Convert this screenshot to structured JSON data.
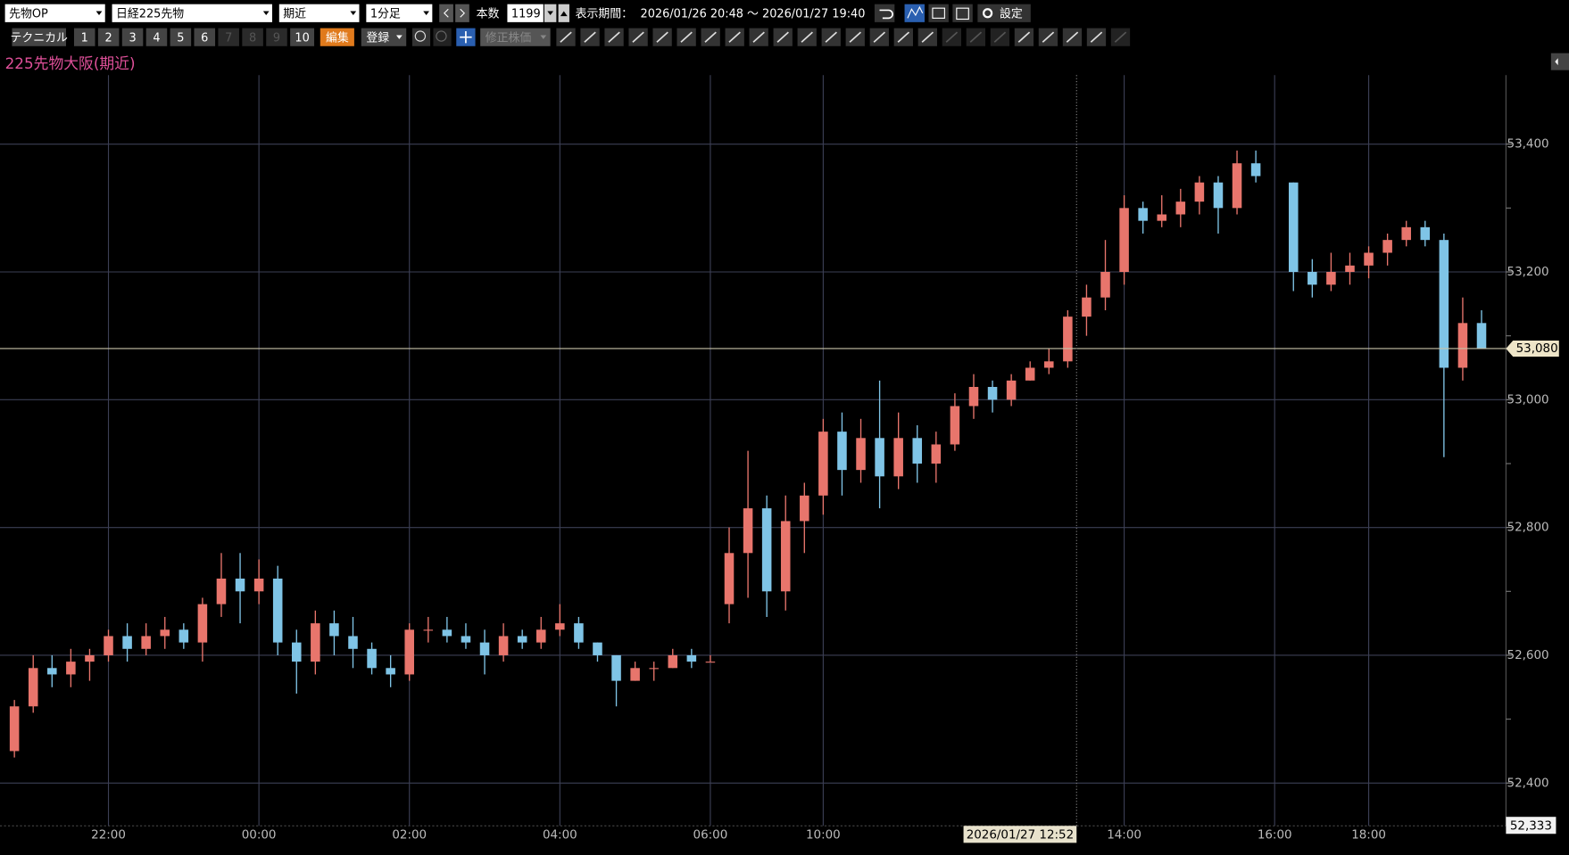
{
  "toolbar": {
    "market": "先物OP",
    "symbol": "日経225先物",
    "contract": "期近",
    "interval": "1分足",
    "count_label": "本数",
    "count": 1199,
    "period_label": "表示期間：",
    "period": "2026/01/26 20:48 ～ 2026/01/27 19:40",
    "settings": "設定",
    "technical": "テクニカル",
    "presets": [
      "1",
      "2",
      "3",
      "4",
      "5",
      "6",
      "7",
      "8",
      "9",
      "10"
    ],
    "edit": "編集",
    "register": "登録",
    "adjusted": "修正株価",
    "icon_label": "icon"
  },
  "chart_data": {
    "type": "candlestick",
    "title": "225先物大阪(期近)",
    "up_color": "#e8756c",
    "down_color": "#7fc4e6",
    "categories": [
      null,
      null,
      null,
      null,
      null,
      "22:00",
      null,
      null,
      null,
      null,
      null,
      null,
      null,
      "00:00",
      null,
      null,
      null,
      null,
      null,
      null,
      null,
      "02:00",
      null,
      null,
      null,
      null,
      null,
      null,
      null,
      "04:00",
      null,
      null,
      null,
      null,
      null,
      null,
      null,
      "06:00",
      null,
      null,
      null,
      null,
      null,
      "10:00",
      null,
      null,
      null,
      null,
      null,
      null,
      null,
      null,
      null,
      null,
      null,
      null,
      null,
      null,
      null,
      "14:00",
      null,
      null,
      null,
      null,
      null,
      null,
      null,
      "16:00",
      null,
      null,
      null,
      null,
      "18:00",
      null,
      null,
      null,
      null,
      null,
      null
    ],
    "open": [
      52450,
      52520,
      52580,
      52570,
      52590,
      52600,
      52630,
      52610,
      52630,
      52640,
      52620,
      52680,
      52720,
      52700,
      52720,
      52620,
      52590,
      52650,
      52630,
      52610,
      52580,
      52570,
      52640,
      52640,
      52630,
      52620,
      52600,
      52630,
      52620,
      52640,
      52650,
      52620,
      52600,
      52560,
      52580,
      52580,
      52600,
      52590,
      52680,
      52760,
      52830,
      52700,
      52810,
      52850,
      52950,
      52890,
      52940,
      52880,
      52940,
      52900,
      52930,
      52990,
      53020,
      53000,
      53030,
      53050,
      53060,
      53130,
      53160,
      53200,
      53300,
      53280,
      53290,
      53310,
      53340,
      53300,
      53370,
      null,
      53340,
      53200,
      53180,
      53200,
      53210,
      53230,
      53250,
      53270,
      53250,
      53050,
      53120
    ],
    "high": [
      52530,
      52600,
      52600,
      52610,
      52610,
      52640,
      52650,
      52650,
      52660,
      52650,
      52690,
      52760,
      52760,
      52750,
      52740,
      52640,
      52670,
      52670,
      52660,
      52620,
      52600,
      52650,
      52660,
      52660,
      52650,
      52640,
      52650,
      52640,
      52660,
      52680,
      52660,
      52620,
      52600,
      52590,
      52590,
      52610,
      52610,
      52600,
      52800,
      52920,
      52850,
      52850,
      52870,
      52970,
      52980,
      52970,
      53030,
      52980,
      52960,
      52950,
      53010,
      53040,
      53030,
      53040,
      53060,
      53080,
      53140,
      53180,
      53250,
      53320,
      53310,
      53320,
      53330,
      53350,
      53350,
      53390,
      53390,
      null,
      53340,
      53220,
      53230,
      53230,
      53240,
      53260,
      53280,
      53280,
      53260,
      53160,
      53140
    ],
    "low": [
      52440,
      52510,
      52550,
      52550,
      52560,
      52590,
      52590,
      52600,
      52610,
      52610,
      52590,
      52660,
      52650,
      52680,
      52600,
      52540,
      52570,
      52600,
      52580,
      52570,
      52550,
      52560,
      52620,
      52620,
      52610,
      52570,
      52590,
      52610,
      52610,
      52630,
      52610,
      52590,
      52520,
      52560,
      52560,
      52580,
      52580,
      52590,
      52650,
      52690,
      52660,
      52670,
      52760,
      52820,
      52850,
      52870,
      52830,
      52860,
      52870,
      52870,
      52920,
      52970,
      52980,
      52990,
      53030,
      53040,
      53050,
      53100,
      53140,
      53180,
      53260,
      53270,
      53270,
      53290,
      53260,
      53290,
      53340,
      null,
      53170,
      53160,
      53170,
      53180,
      53190,
      53210,
      53240,
      53240,
      52910,
      53030,
      53080
    ],
    "close": [
      52520,
      52580,
      52570,
      52590,
      52600,
      52630,
      52610,
      52630,
      52640,
      52620,
      52680,
      52720,
      52700,
      52720,
      52620,
      52590,
      52650,
      52630,
      52610,
      52580,
      52570,
      52640,
      52640,
      52630,
      52620,
      52600,
      52630,
      52620,
      52640,
      52650,
      52620,
      52600,
      52560,
      52580,
      52580,
      52600,
      52590,
      52590,
      52760,
      52830,
      52700,
      52810,
      52850,
      52950,
      52890,
      52940,
      52880,
      52940,
      52900,
      52930,
      52990,
      53020,
      53000,
      53030,
      53050,
      53060,
      53130,
      53160,
      53200,
      53300,
      53280,
      53290,
      53310,
      53340,
      53300,
      53370,
      53350,
      null,
      53200,
      53180,
      53200,
      53210,
      53230,
      53250,
      53270,
      53250,
      53050,
      53120,
      53080
    ],
    "ylim": [
      52333,
      53508
    ],
    "yticks": [
      {
        "value": 52400,
        "label": "52,400"
      },
      {
        "value": 52600,
        "label": "52,600"
      },
      {
        "value": 52800,
        "label": "52,800"
      },
      {
        "value": 53000,
        "label": "53,000"
      },
      {
        "value": 53200,
        "label": "53,200"
      },
      {
        "value": 53400,
        "label": "53,400"
      }
    ],
    "minor_yticks": [
      52500,
      52700,
      52900,
      53100,
      53300
    ],
    "grid": true,
    "last_price": {
      "value": 53080,
      "label": "53,080"
    },
    "crosshair": {
      "x_label": "2026/01/27 12:52",
      "y": {
        "value": 52333,
        "label": "52,333"
      }
    }
  }
}
